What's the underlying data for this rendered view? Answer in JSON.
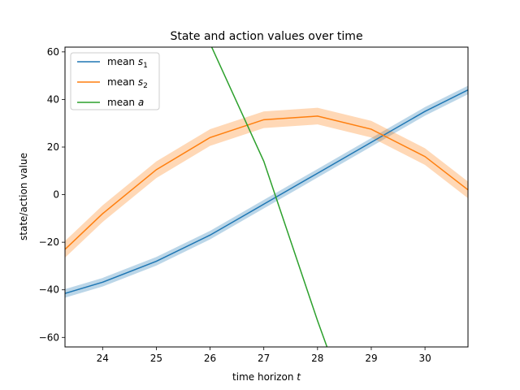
{
  "chart_data": {
    "type": "line",
    "title": "State and action values over time",
    "xlabel": "time horizon",
    "xlabel_var": "t",
    "ylabel": "state/action value",
    "xlim": [
      23.3,
      30.8
    ],
    "ylim": [
      -64,
      62
    ],
    "xticks": [
      24,
      25,
      26,
      27,
      28,
      29,
      30
    ],
    "yticks": [
      -60,
      -40,
      -20,
      0,
      20,
      40,
      60
    ],
    "grid": false,
    "legend_position": "top-left",
    "series": [
      {
        "name": "mean",
        "var": "s",
        "sub": "1",
        "color": "#1f77b4",
        "x": [
          23.3,
          24,
          25,
          26,
          27,
          28,
          29,
          30,
          30.8
        ],
        "y": [
          -41.5,
          -36.8,
          -28,
          -17,
          -4,
          9,
          22,
          35,
          44
        ],
        "band": 1.8
      },
      {
        "name": "mean",
        "var": "s",
        "sub": "2",
        "color": "#ff7f0e",
        "x": [
          23.3,
          24,
          25,
          26,
          27,
          28,
          29,
          30,
          30.8
        ],
        "y": [
          -23,
          -8,
          10.5,
          24,
          31.5,
          33,
          27.5,
          16,
          2
        ],
        "band": 3.5
      },
      {
        "name": "mean",
        "var": "a",
        "sub": "",
        "color": "#2ca02c",
        "x": [
          25.7,
          26,
          27,
          28,
          28.4
        ],
        "y": [
          79,
          63.5,
          14,
          -53,
          -78
        ],
        "band": 0.16
      }
    ]
  }
}
